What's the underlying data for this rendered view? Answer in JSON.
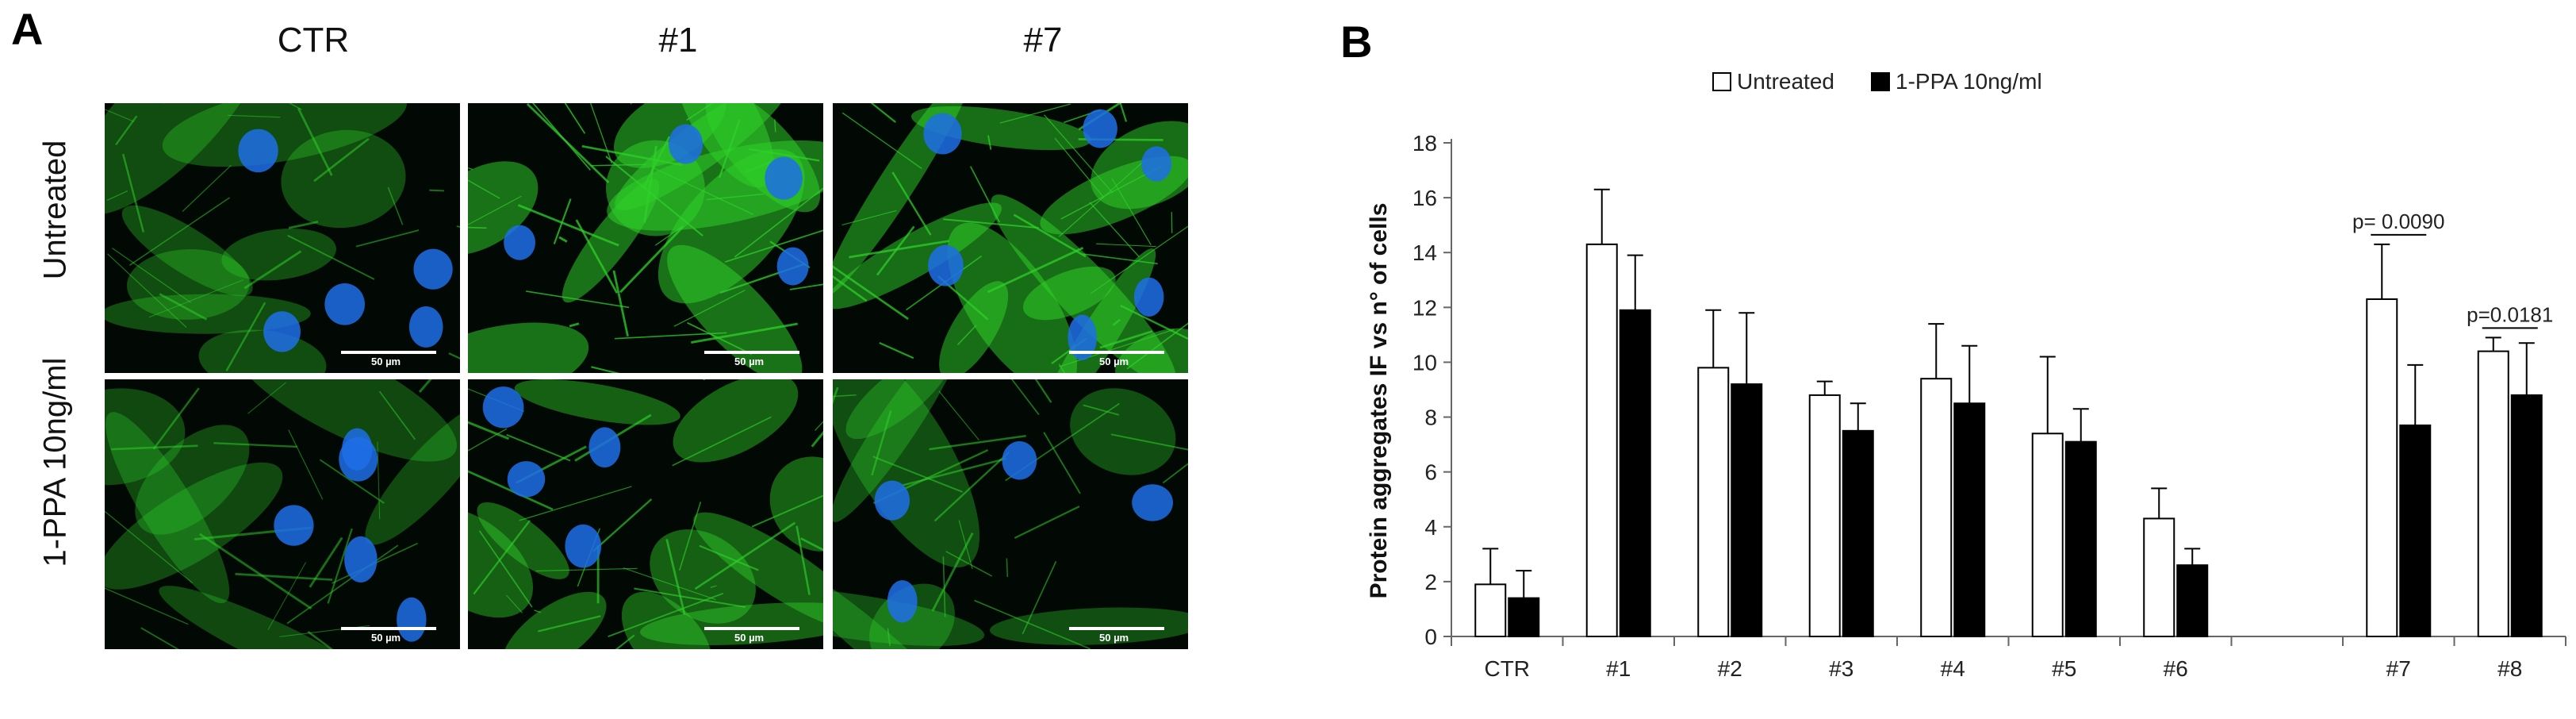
{
  "panel_a": {
    "letter": "A",
    "columns": [
      "CTR",
      "#1",
      "#7"
    ],
    "rows": [
      "Untreated",
      "1-PPA 10ng/ml"
    ],
    "scale_bar": "50 µm",
    "colors": {
      "cytoplasm": "#2fd12a",
      "nucleus": "#1f6fe8",
      "background": "#020804"
    }
  },
  "panel_b": {
    "letter": "B",
    "chart_data": {
      "type": "bar",
      "title": "",
      "ylabel": "Protein aggregates IF vs n° of cells",
      "xlabel": "",
      "ylim": [
        0,
        18
      ],
      "yticks": [
        0,
        2,
        4,
        6,
        8,
        10,
        12,
        14,
        16,
        18
      ],
      "categories": [
        "CTR",
        "#1",
        "#2",
        "#3",
        "#4",
        "#5",
        "#6",
        "",
        "#7",
        "#8"
      ],
      "legend_position": "top-center",
      "series": [
        {
          "name": "Untreated",
          "color": "#ffffff",
          "values": [
            1.9,
            14.3,
            9.8,
            8.8,
            9.4,
            7.4,
            4.3,
            null,
            12.3,
            10.4
          ],
          "errors": [
            1.3,
            2.0,
            2.1,
            0.5,
            2.0,
            2.8,
            1.1,
            null,
            2.0,
            0.5
          ]
        },
        {
          "name": "1-PPA 10ng/ml",
          "color": "#000000",
          "values": [
            1.4,
            11.9,
            9.2,
            7.5,
            8.5,
            7.1,
            2.6,
            null,
            7.7,
            8.8
          ],
          "errors": [
            1.0,
            2.0,
            2.6,
            1.0,
            2.1,
            1.2,
            0.6,
            null,
            2.2,
            1.9
          ]
        }
      ],
      "annotations": [
        {
          "text": "p= 0.0090",
          "category": "#7"
        },
        {
          "text": "p=0.0181",
          "category": "#8"
        }
      ]
    }
  }
}
